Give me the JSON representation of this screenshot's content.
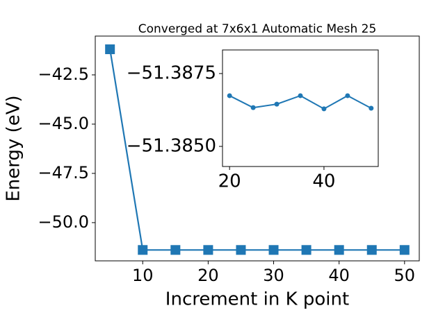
{
  "chart_data": [
    {
      "type": "line",
      "title": "Converged at 7x6x1 Automatic Mesh 25",
      "x_label": "Increment in K point",
      "y_label": "Energy (eV)",
      "x": [
        5,
        10,
        15,
        20,
        25,
        30,
        35,
        40,
        45,
        50
      ],
      "series": [
        {
          "color": "#1f77b4",
          "marker": "square",
          "values": [
            -41.2,
            -51.387,
            -51.387,
            -51.387,
            -51.387,
            -51.387,
            -51.387,
            -51.387,
            -51.387,
            -51.387
          ]
        }
      ],
      "xlim": [
        2.75,
        52.25
      ],
      "ylim": [
        -51.94,
        -40.53
      ],
      "xticks": [
        10,
        20,
        30,
        40,
        50
      ],
      "yticks": [
        {
          "value": -42.5,
          "label": "−42.5"
        },
        {
          "value": -45.0,
          "label": "−45.0"
        },
        {
          "value": -47.5,
          "label": "−47.5"
        },
        {
          "value": -50.0,
          "label": "−50.0"
        }
      ]
    },
    {
      "type": "line",
      "x": [
        20,
        25,
        30,
        35,
        40,
        45,
        50
      ],
      "series": [
        {
          "color": "#1f77b4",
          "marker": "circle",
          "values": [
            -51.38674,
            -51.38633,
            -51.38645,
            -51.38674,
            -51.38629,
            -51.38674,
            -51.38631
          ]
        }
      ],
      "xlim": [
        18.5,
        51.5
      ],
      "ylim": [
        -51.38431,
        -51.38831
      ],
      "xticks": [
        20,
        40
      ],
      "yticks": [
        {
          "value": -51.3875,
          "label": "−51.3875"
        },
        {
          "value": -51.385,
          "label": "−51.3850"
        }
      ]
    }
  ]
}
